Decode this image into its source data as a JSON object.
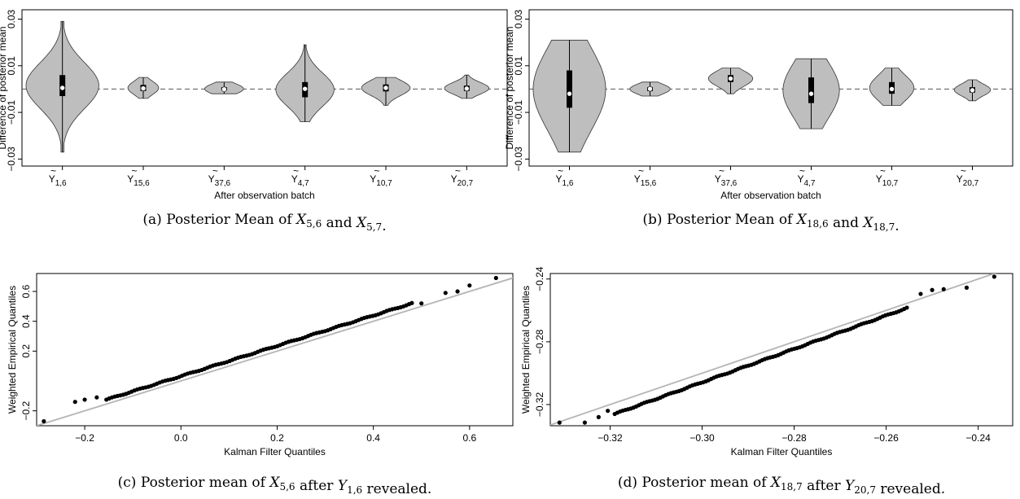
{
  "chart_data": [
    {
      "panel": "a",
      "type": "violin",
      "caption": "(a) Posterior Mean of X5,6 and X5,7.",
      "xlabel": "After observation batch",
      "ylabel": "Difference of posterior mean",
      "yticks": [
        "−0.03",
        "−0.01",
        "0.01",
        "0.03"
      ],
      "ylim": [
        -0.033,
        0.034
      ],
      "reference_line_y": 0,
      "categories": [
        {
          "base": "Y",
          "sub": "1,6"
        },
        {
          "base": "Y",
          "sub": "15,6"
        },
        {
          "base": "Y",
          "sub": "37,6"
        },
        {
          "base": "Y",
          "sub": "4,7"
        },
        {
          "base": "Y",
          "sub": "10,7"
        },
        {
          "base": "Y",
          "sub": "20,7"
        }
      ],
      "violins": [
        {
          "min": -0.027,
          "max": 0.029,
          "q1": -0.003,
          "q3": 0.006,
          "median": 0.0005,
          "width": 0.9
        },
        {
          "min": -0.004,
          "max": 0.005,
          "q1": -0.0008,
          "q3": 0.0018,
          "median": 0.0003,
          "width": 0.38
        },
        {
          "min": -0.002,
          "max": 0.003,
          "q1": -0.0006,
          "q3": 0.0008,
          "median": -0.0001,
          "width": 0.48
        },
        {
          "min": -0.014,
          "max": 0.019,
          "q1": -0.0035,
          "q3": 0.003,
          "median": 0.0001,
          "width": 0.72
        },
        {
          "min": -0.007,
          "max": 0.005,
          "q1": -0.001,
          "q3": 0.002,
          "median": 0.0005,
          "width": 0.6
        },
        {
          "min": -0.004,
          "max": 0.006,
          "q1": -0.0008,
          "q3": 0.0015,
          "median": 0.0002,
          "width": 0.55
        }
      ]
    },
    {
      "panel": "b",
      "type": "violin",
      "caption": "(b) Posterior Mean of X18,6 and X18,7.",
      "xlabel": "After observation batch",
      "ylabel": "Difference of posterior mean",
      "yticks": [
        "−0.03",
        "−0.01",
        "0.01",
        "0.03"
      ],
      "ylim": [
        -0.033,
        0.034
      ],
      "reference_line_y": 0,
      "categories": [
        {
          "base": "Y",
          "sub": "1,6"
        },
        {
          "base": "Y",
          "sub": "15,6"
        },
        {
          "base": "Y",
          "sub": "37,6"
        },
        {
          "base": "Y",
          "sub": "4,7"
        },
        {
          "base": "Y",
          "sub": "10,7"
        },
        {
          "base": "Y",
          "sub": "20,7"
        }
      ],
      "violins": [
        {
          "min": -0.027,
          "max": 0.021,
          "q1": -0.008,
          "q3": 0.008,
          "median": -0.002,
          "width": 0.9
        },
        {
          "min": -0.003,
          "max": 0.003,
          "q1": -0.0008,
          "q3": 0.0008,
          "median": 0.0001,
          "width": 0.5
        },
        {
          "min": -0.002,
          "max": 0.009,
          "q1": 0.003,
          "q3": 0.006,
          "median": 0.0045,
          "width": 0.55
        },
        {
          "min": -0.017,
          "max": 0.013,
          "q1": -0.006,
          "q3": 0.005,
          "median": -0.002,
          "width": 0.7
        },
        {
          "min": -0.007,
          "max": 0.009,
          "q1": -0.002,
          "q3": 0.003,
          "median": 0.0,
          "width": 0.55
        },
        {
          "min": -0.005,
          "max": 0.004,
          "q1": -0.0015,
          "q3": 0.0008,
          "median": -0.0005,
          "width": 0.45
        }
      ]
    },
    {
      "panel": "c",
      "type": "scatter",
      "caption": "(c) Posterior mean of X5,6 after Y1,6 revealed.",
      "xlabel": "Kalman Filter Quantiles",
      "ylabel": "Weighted Empirical Quantiles",
      "xticks": [
        "−0.2",
        "0.0",
        "0.2",
        "0.4",
        "0.6"
      ],
      "yticks": [
        "−0.2",
        "0.2",
        "0.4",
        "0.6"
      ],
      "xlim": [
        -0.3,
        0.69
      ],
      "ylim": [
        -0.3,
        0.72
      ],
      "reference_line": {
        "slope": 1,
        "intercept": 0
      },
      "points": [
        [
          -0.285,
          -0.27
        ],
        [
          -0.22,
          -0.14
        ],
        [
          -0.2,
          -0.125
        ],
        [
          -0.175,
          -0.11
        ],
        [
          0.6,
          0.64
        ],
        [
          0.655,
          0.69
        ],
        [
          0.55,
          0.59
        ],
        [
          0.575,
          0.6
        ],
        [
          0.5,
          0.52
        ]
      ],
      "dense_band": {
        "x_from": -0.155,
        "x_to": 0.48,
        "offset_start": 0.03,
        "offset_end": 0.04,
        "count": 110
      }
    },
    {
      "panel": "d",
      "type": "scatter",
      "caption": "(d) Posterior mean of X18,7 after Y20,7 revealed.",
      "xlabel": "Kalman Filter Quantiles",
      "ylabel": "Weighted Empirical Quantiles",
      "xticks": [
        "−0.32",
        "−0.30",
        "−0.28",
        "−0.26",
        "−0.24"
      ],
      "yticks": [
        "−0.32",
        "−0.28",
        "−0.24"
      ],
      "xlim": [
        -0.333,
        -0.2325
      ],
      "ylim": [
        -0.3335,
        -0.2365
      ],
      "reference_line": {
        "slope": 1,
        "intercept": 0
      },
      "points": [
        [
          -0.331,
          -0.3315
        ],
        [
          -0.3255,
          -0.3315
        ],
        [
          -0.3225,
          -0.328
        ],
        [
          -0.3205,
          -0.324
        ],
        [
          -0.2365,
          -0.2385
        ],
        [
          -0.2425,
          -0.2455
        ],
        [
          -0.2475,
          -0.2465
        ],
        [
          -0.25,
          -0.247
        ],
        [
          -0.2525,
          -0.2495
        ]
      ],
      "dense_band": {
        "x_from": -0.319,
        "x_to": -0.2555,
        "offset_start": -0.007,
        "offset_end": -0.003,
        "count": 110
      }
    }
  ]
}
